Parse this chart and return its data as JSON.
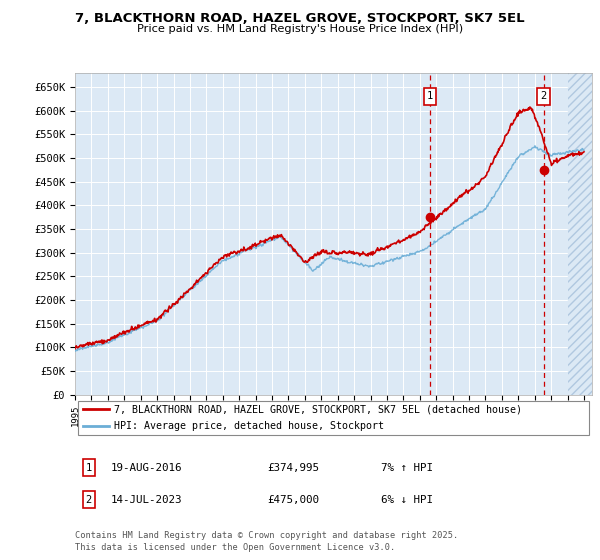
{
  "title_line1": "7, BLACKTHORN ROAD, HAZEL GROVE, STOCKPORT, SK7 5EL",
  "title_line2": "Price paid vs. HM Land Registry's House Price Index (HPI)",
  "ylim": [
    0,
    680000
  ],
  "yticks": [
    0,
    50000,
    100000,
    150000,
    200000,
    250000,
    300000,
    350000,
    400000,
    450000,
    500000,
    550000,
    600000,
    650000
  ],
  "ytick_labels": [
    "£0",
    "£50K",
    "£100K",
    "£150K",
    "£200K",
    "£250K",
    "£300K",
    "£350K",
    "£400K",
    "£450K",
    "£500K",
    "£550K",
    "£600K",
    "£650K"
  ],
  "xlim_start": 1995.0,
  "xlim_end": 2026.5,
  "plot_bg": "#dce9f5",
  "grid_color": "#ffffff",
  "red_line_color": "#cc0000",
  "blue_line_color": "#6baed6",
  "marker1_date": 2016.63,
  "marker1_value": 374995,
  "marker2_date": 2023.54,
  "marker2_value": 475000,
  "legend_label1": "7, BLACKTHORN ROAD, HAZEL GROVE, STOCKPORT, SK7 5EL (detached house)",
  "legend_label2": "HPI: Average price, detached house, Stockport",
  "note1_date": "19-AUG-2016",
  "note1_price": "£374,995",
  "note1_hpi": "7% ↑ HPI",
  "note2_date": "14-JUL-2023",
  "note2_price": "£475,000",
  "note2_hpi": "6% ↓ HPI",
  "footer": "Contains HM Land Registry data © Crown copyright and database right 2025.\nThis data is licensed under the Open Government Licence v3.0."
}
